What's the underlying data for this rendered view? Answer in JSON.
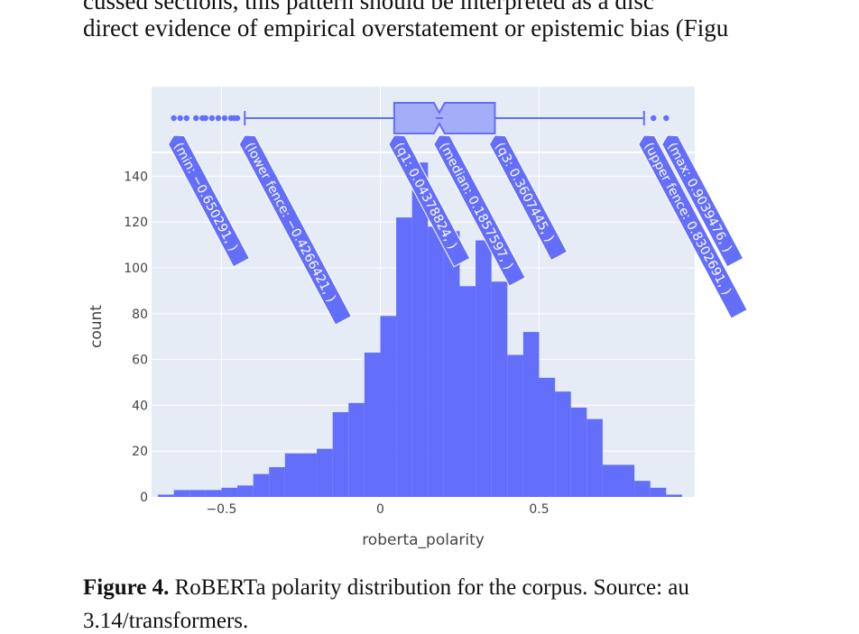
{
  "text": {
    "line1": "cussed sections, this pattern should be interpreted as a disc",
    "line2": "direct evidence of empirical overstatement or epistemic bias (Figu"
  },
  "figure": {
    "caption_label": "Figure 4.",
    "caption_text": " RoBERTa polarity distribution for the corpus.  Source: au",
    "caption_line2": "3.14/transformers."
  },
  "chart_data": {
    "type": "bar",
    "xlabel": "roberta_polarity",
    "ylabel": "count",
    "xlim": [
      -0.72,
      0.99
    ],
    "ylim": [
      0,
      150
    ],
    "xticks": [
      -0.5,
      0,
      0.5
    ],
    "xtick_labels": [
      "−0.5",
      "0",
      "0.5"
    ],
    "yticks": [
      0,
      20,
      40,
      60,
      80,
      100,
      120,
      140
    ],
    "bin_width": 0.05,
    "bins_start": [
      -0.7,
      -0.65,
      -0.6,
      -0.55,
      -0.5,
      -0.45,
      -0.4,
      -0.35,
      -0.3,
      -0.25,
      -0.2,
      -0.15,
      -0.1,
      -0.05,
      0.0,
      0.05,
      0.1,
      0.15,
      0.2,
      0.25,
      0.3,
      0.35,
      0.4,
      0.45,
      0.5,
      0.55,
      0.6,
      0.65,
      0.7,
      0.75,
      0.8,
      0.85,
      0.9
    ],
    "values": [
      1,
      3,
      3,
      3,
      4,
      5,
      10,
      13,
      19,
      19,
      21,
      37,
      41,
      63,
      79,
      122,
      146,
      118,
      116,
      92,
      112,
      94,
      62,
      72,
      52,
      46,
      39,
      34,
      14,
      14,
      7,
      4,
      1
    ],
    "grid": true,
    "bar_color": "#636efa",
    "background": "#e5ecf6",
    "box": {
      "min": -0.650291,
      "lower_fence": -0.4266421,
      "q1": 0.04378824,
      "median": 0.1857597,
      "q3": 0.3607445,
      "upper_fence": 0.8302691,
      "max": 0.9039476,
      "outliers": [
        -0.65,
        -0.63,
        -0.61,
        -0.58,
        -0.56,
        -0.55,
        -0.53,
        -0.51,
        -0.49,
        -0.47,
        -0.46,
        -0.45,
        0.86,
        0.9
      ]
    },
    "hover_labels": [
      "(min: −0.650291, )",
      "(lower fence: −0.4266421, )",
      "(q1: 0.04378824, )",
      "(median: 0.1857597, )",
      "(q3: 0.3607445, )",
      "(upper fence: 0.8302691, )",
      "(max: 0.9039476, )"
    ]
  }
}
